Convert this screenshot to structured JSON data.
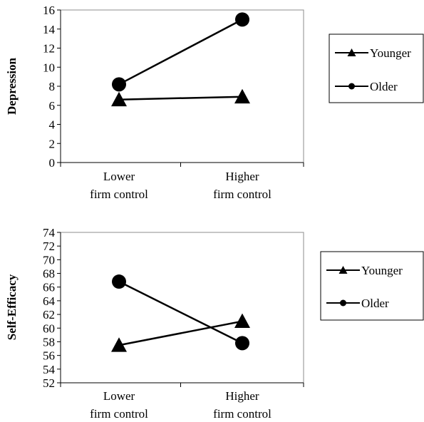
{
  "chart_data": [
    {
      "type": "line",
      "title": "",
      "xlabel": "",
      "ylabel": "Depression",
      "categories": [
        [
          "Lower",
          "firm control"
        ],
        [
          "Higher",
          "firm control"
        ]
      ],
      "ylim": [
        0,
        16
      ],
      "yticks": [
        0,
        2,
        4,
        6,
        8,
        10,
        12,
        14,
        16
      ],
      "grid": false,
      "legend_position": "right",
      "series": [
        {
          "name": "Younger",
          "marker": "triangle",
          "values": [
            6.6,
            6.9
          ]
        },
        {
          "name": "Older",
          "marker": "circle",
          "values": [
            8.2,
            15.0
          ]
        }
      ]
    },
    {
      "type": "line",
      "title": "",
      "xlabel": "",
      "ylabel": "Self-Efficacy",
      "categories": [
        [
          "Lower",
          "firm control"
        ],
        [
          "Higher",
          "firm control"
        ]
      ],
      "ylim": [
        52,
        74
      ],
      "yticks": [
        52,
        54,
        56,
        58,
        60,
        62,
        64,
        66,
        68,
        70,
        72,
        74
      ],
      "grid": false,
      "legend_position": "right",
      "series": [
        {
          "name": "Younger",
          "marker": "triangle",
          "values": [
            57.5,
            61.0
          ]
        },
        {
          "name": "Older",
          "marker": "circle",
          "values": [
            66.8,
            57.8
          ]
        }
      ]
    }
  ]
}
